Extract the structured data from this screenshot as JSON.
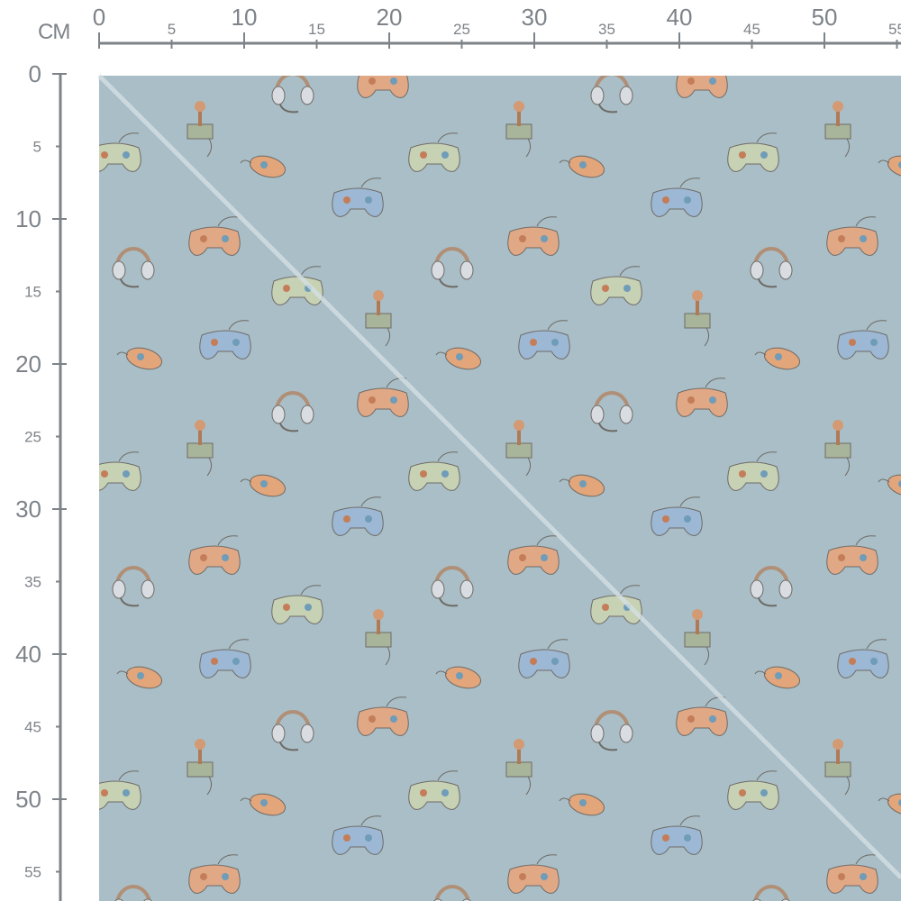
{
  "ruler": {
    "unit_label": "CM",
    "top_major": [
      "0",
      "10",
      "20",
      "30",
      "40",
      "50"
    ],
    "top_minor": [
      "5",
      "15",
      "25",
      "35",
      "45",
      "55"
    ],
    "left_major": [
      "0",
      "10",
      "20",
      "30",
      "40",
      "50"
    ],
    "left_minor": [
      "5",
      "15",
      "25",
      "35",
      "45",
      "55"
    ]
  },
  "fabric": {
    "background_color": "#a9bec6",
    "motifs": [
      "headset-icon",
      "joystick-icon",
      "green-gamepad-icon",
      "orange-mouse-icon",
      "blue-gamepad-icon",
      "orange-gamepad-icon"
    ]
  }
}
